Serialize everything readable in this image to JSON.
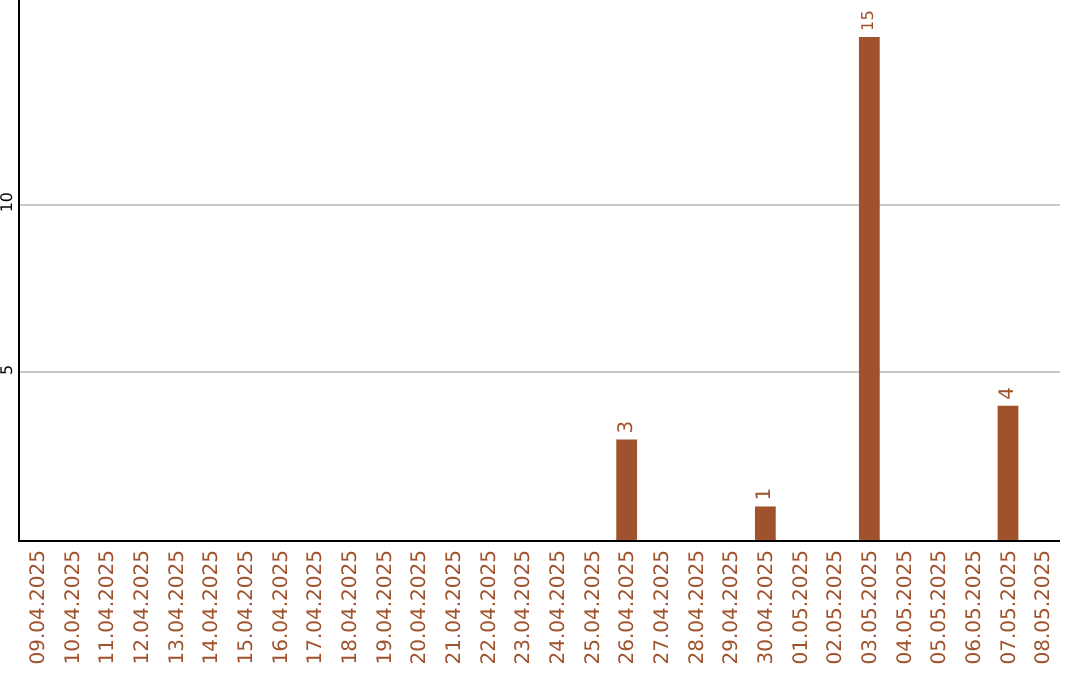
{
  "chart_data": {
    "type": "bar",
    "categories": [
      "09.04.2025",
      "10.04.2025",
      "11.04.2025",
      "12.04.2025",
      "13.04.2025",
      "14.04.2025",
      "15.04.2025",
      "16.04.2025",
      "17.04.2025",
      "18.04.2025",
      "19.04.2025",
      "20.04.2025",
      "21.04.2025",
      "22.04.2025",
      "23.04.2025",
      "24.04.2025",
      "25.04.2025",
      "26.04.2025",
      "27.04.2025",
      "28.04.2025",
      "29.04.2025",
      "30.04.2025",
      "01.05.2025",
      "02.05.2025",
      "03.05.2025",
      "04.05.2025",
      "05.05.2025",
      "06.05.2025",
      "07.05.2025",
      "08.05.2025"
    ],
    "values": [
      0,
      0,
      0,
      0,
      0,
      0,
      0,
      0,
      0,
      0,
      0,
      0,
      0,
      0,
      0,
      0,
      0,
      3,
      0,
      0,
      0,
      1,
      0,
      0,
      15,
      0,
      0,
      0,
      4,
      0
    ],
    "value_labels": [
      null,
      null,
      null,
      null,
      null,
      null,
      null,
      null,
      null,
      null,
      null,
      null,
      null,
      null,
      null,
      null,
      null,
      "3",
      null,
      null,
      null,
      "1",
      null,
      null,
      "15",
      null,
      null,
      null,
      "4",
      null
    ],
    "color": "#a0522d",
    "ylim": [
      0,
      16.1
    ],
    "yticks": [
      5,
      10
    ],
    "grid": "y"
  }
}
